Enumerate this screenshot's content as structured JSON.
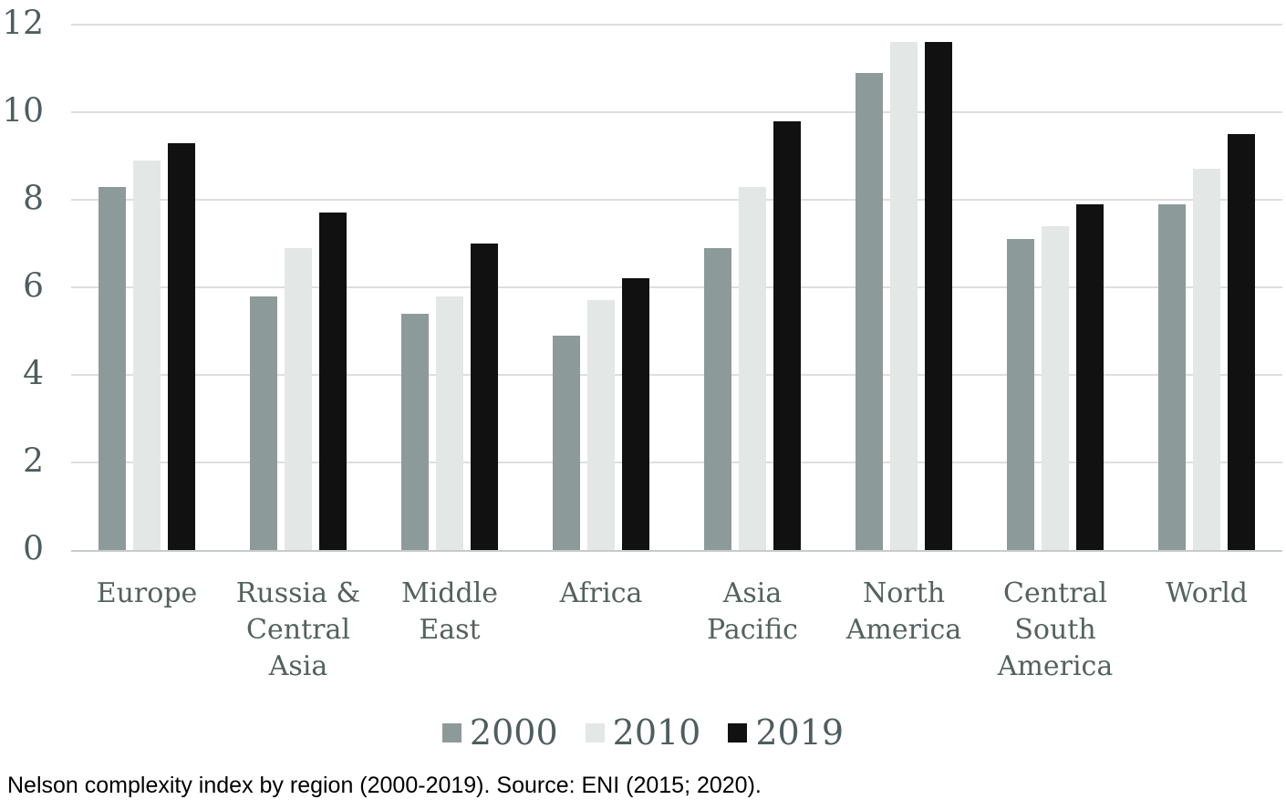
{
  "chart_data": {
    "type": "bar",
    "categories": [
      "Europe",
      "Russia & Central Asia",
      "Middle East",
      "Africa",
      "Asia Pacific",
      "North America",
      "Central South America",
      "World"
    ],
    "series": [
      {
        "name": "2000",
        "color": "#8C9B99",
        "values": [
          8.3,
          5.8,
          5.4,
          4.9,
          6.9,
          10.9,
          7.1,
          7.9
        ]
      },
      {
        "name": "2010",
        "color": "#E3E7E6",
        "values": [
          8.9,
          6.9,
          5.8,
          5.7,
          8.3,
          11.6,
          7.4,
          8.7
        ]
      },
      {
        "name": "2019",
        "color": "#111111",
        "values": [
          9.3,
          7.7,
          7.0,
          6.2,
          9.8,
          11.6,
          7.9,
          9.5
        ]
      }
    ],
    "title": "",
    "xlabel": "",
    "ylabel": "",
    "ylim": [
      0,
      12
    ],
    "yticks": [
      0,
      2,
      4,
      6,
      8,
      10,
      12
    ],
    "grid": true,
    "legend_position": "bottom"
  },
  "colors": {
    "axis_text": "#4e5e5e",
    "category_text": "#53625f",
    "gridline": "#dcdfde",
    "axis_line": "#c7cccb",
    "caption_text": "#000000"
  },
  "caption": "Nelson complexity index by region (2000-2019). Source: ENI (2015; 2020)."
}
